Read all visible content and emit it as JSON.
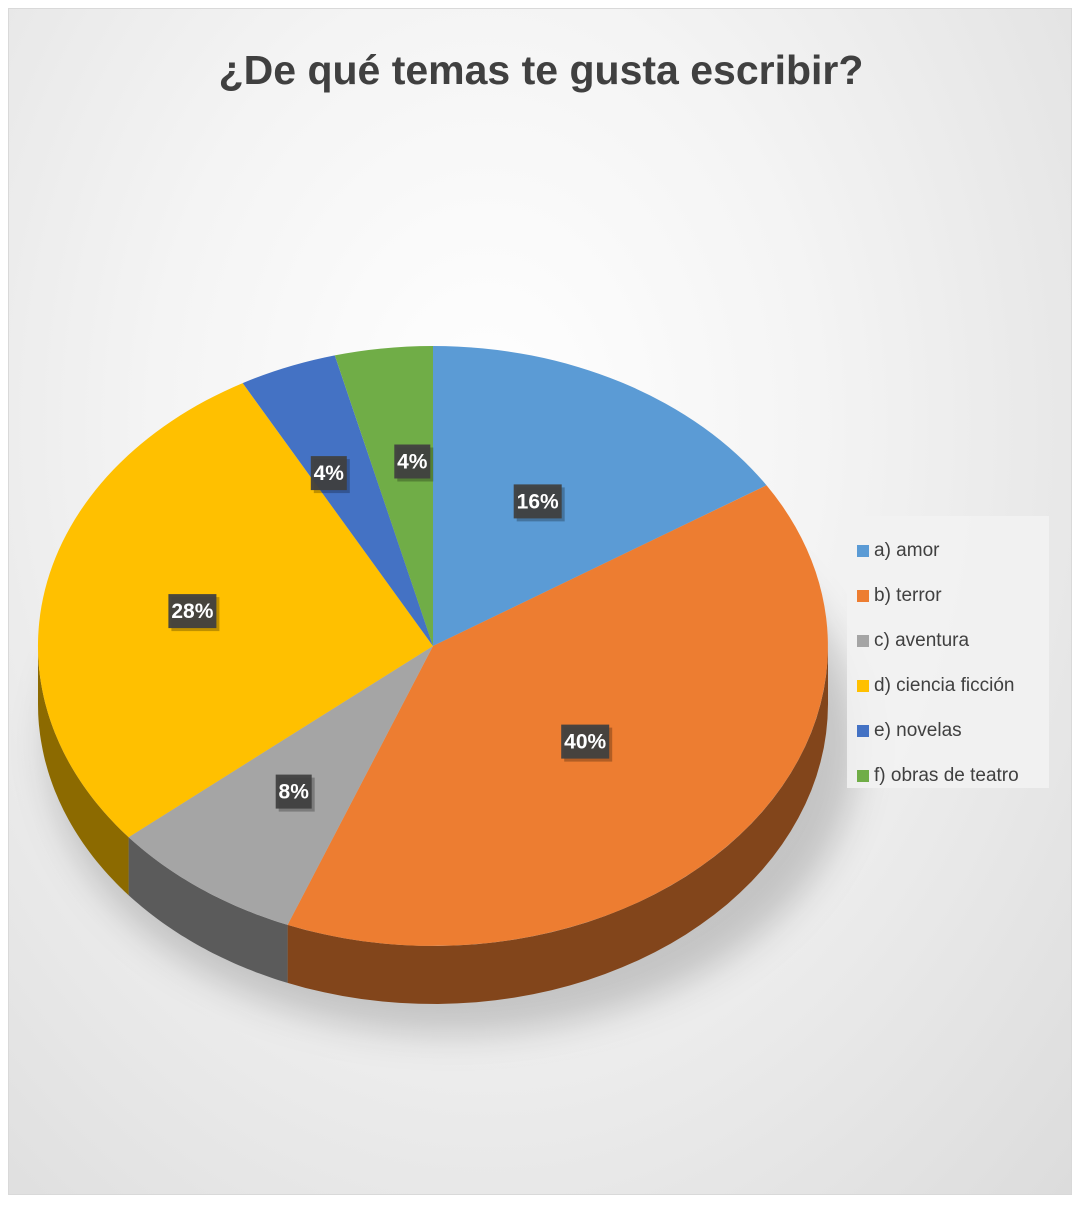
{
  "chart_data": {
    "type": "pie",
    "title": "¿De qué temas te gusta escribir?",
    "categories": [
      "a) amor",
      "b) terror",
      "c) aventura",
      "d) ciencia ficción",
      "e) novelas",
      "f) obras de teatro"
    ],
    "values": [
      16,
      40,
      8,
      28,
      4,
      4
    ],
    "data_labels": [
      "16%",
      "40%",
      "8%",
      "28%",
      "4%",
      "4%"
    ],
    "colors": [
      "#5B9BD5",
      "#ED7D31",
      "#A5A5A5",
      "#FFC000",
      "#4472C4",
      "#70AD47"
    ],
    "style": "3d",
    "legend_position": "right"
  }
}
